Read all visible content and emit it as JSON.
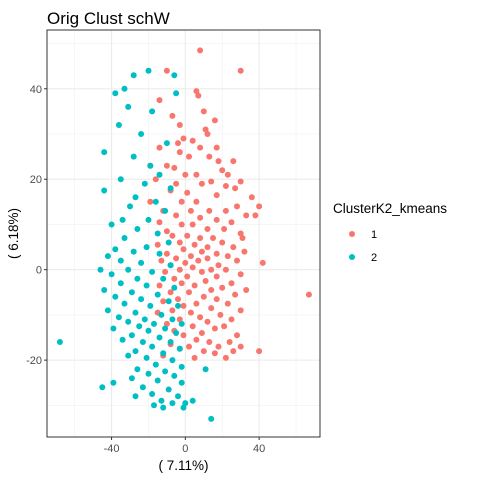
{
  "chart_data": {
    "type": "scatter",
    "title": "Orig Clust schW",
    "xlabel": "( 7.11%)",
    "ylabel": "( 6.18%)",
    "xlim": [
      -75,
      73
    ],
    "ylim": [
      -37,
      53
    ],
    "x_ticks": [
      -40,
      0,
      40
    ],
    "y_ticks": [
      -20,
      0,
      20,
      40
    ],
    "x_tick_labels": [
      "-40",
      "0",
      "40"
    ],
    "y_tick_labels": [
      "-20",
      "0",
      "20",
      "40"
    ],
    "grid": true,
    "legend": {
      "title": "ClusterK2_kmeans",
      "position": "right"
    },
    "series": [
      {
        "name": "1",
        "color": "#F8766D",
        "points": [
          [
            8,
            48.5
          ],
          [
            30,
            44
          ],
          [
            -10,
            44
          ],
          [
            6,
            39.5
          ],
          [
            7,
            38.5
          ],
          [
            -14,
            37.5
          ],
          [
            10,
            35
          ],
          [
            -7,
            34
          ],
          [
            16,
            33
          ],
          [
            -3,
            32
          ],
          [
            11,
            31
          ],
          [
            12,
            30
          ],
          [
            -1,
            29
          ],
          [
            4,
            28.5
          ],
          [
            -4,
            28
          ],
          [
            8,
            27
          ],
          [
            17,
            27
          ],
          [
            -14,
            27
          ],
          [
            -3,
            26
          ],
          [
            2,
            25
          ],
          [
            13,
            25
          ],
          [
            18,
            24
          ],
          [
            26,
            24
          ],
          [
            -19,
            23
          ],
          [
            -10,
            23
          ],
          [
            -6,
            22.5
          ],
          [
            20,
            22
          ],
          [
            0,
            21
          ],
          [
            6,
            21
          ],
          [
            23,
            21
          ],
          [
            -16,
            20
          ],
          [
            14,
            19.5
          ],
          [
            30,
            19.5
          ],
          [
            -5,
            19
          ],
          [
            9,
            19
          ],
          [
            22,
            18.5
          ],
          [
            27,
            18
          ],
          [
            -8,
            17.5
          ],
          [
            1,
            17
          ],
          [
            17,
            16.5
          ],
          [
            36,
            16
          ],
          [
            -19,
            15
          ],
          [
            -2,
            15
          ],
          [
            6,
            15
          ],
          [
            28,
            14
          ],
          [
            40,
            14
          ],
          [
            -12,
            13
          ],
          [
            3,
            13
          ],
          [
            13,
            13
          ],
          [
            22,
            13
          ],
          [
            33,
            12
          ],
          [
            -5,
            12
          ],
          [
            38,
            12
          ],
          [
            8,
            11.5
          ],
          [
            17,
            11
          ],
          [
            -14,
            10.5
          ],
          [
            -2,
            10
          ],
          [
            25,
            10.5
          ],
          [
            4,
            10
          ],
          [
            12,
            9
          ],
          [
            21,
            9
          ],
          [
            -10,
            8.5
          ],
          [
            30,
            8
          ],
          [
            -7,
            7.5
          ],
          [
            1,
            7.5
          ],
          [
            8,
            7
          ],
          [
            15,
            7
          ],
          [
            31,
            7
          ],
          [
            -3,
            6
          ],
          [
            20,
            6
          ],
          [
            -15,
            5.5
          ],
          [
            5,
            5.5
          ],
          [
            12,
            5
          ],
          [
            26,
            5
          ],
          [
            -1,
            4.5
          ],
          [
            32,
            4
          ],
          [
            9,
            4
          ],
          [
            -10,
            3.5
          ],
          [
            17,
            3.5
          ],
          [
            3,
            3
          ],
          [
            23,
            3
          ],
          [
            -5,
            2.5
          ],
          [
            12,
            2.5
          ],
          [
            -13,
            2
          ],
          [
            7,
            2
          ],
          [
            28,
            2
          ],
          [
            0,
            1.5
          ],
          [
            18,
            1
          ],
          [
            -8,
            1
          ],
          [
            4,
            0.5
          ],
          [
            42,
            1.5
          ],
          [
            14,
            0
          ],
          [
            -3,
            0
          ],
          [
            22,
            0
          ],
          [
            9,
            -0.5
          ],
          [
            -11,
            -0.5
          ],
          [
            30,
            -1
          ],
          [
            1,
            -1.5
          ],
          [
            17,
            -1.5
          ],
          [
            -6,
            -2
          ],
          [
            11,
            -2.5
          ],
          [
            25,
            -3
          ],
          [
            -2,
            -3
          ],
          [
            5,
            -3.5
          ],
          [
            -14,
            -3.5
          ],
          [
            20,
            -4
          ],
          [
            33,
            -4.5
          ],
          [
            14,
            -4.5
          ],
          [
            -8,
            -5
          ],
          [
            2,
            -5
          ],
          [
            27,
            -5.5
          ],
          [
            10,
            -6
          ],
          [
            -4,
            -6.5
          ],
          [
            17,
            -6.5
          ],
          [
            67,
            -5.5
          ],
          [
            -12,
            -7
          ],
          [
            6,
            -7.5
          ],
          [
            23,
            -7.5
          ],
          [
            -1,
            -8
          ],
          [
            14,
            -8.5
          ],
          [
            30,
            -9
          ],
          [
            -7,
            -9
          ],
          [
            3,
            -9.5
          ],
          [
            -15,
            -9.5
          ],
          [
            19,
            -10
          ],
          [
            8,
            -10.5
          ],
          [
            25,
            -11
          ],
          [
            -3,
            -11
          ],
          [
            12,
            -11.5
          ],
          [
            -10,
            -12
          ],
          [
            4,
            -12.5
          ],
          [
            21,
            -12.5
          ],
          [
            16,
            -13
          ],
          [
            -6,
            -13.5
          ],
          [
            9,
            -14
          ],
          [
            28,
            -14.5
          ],
          [
            -1,
            -14.5
          ],
          [
            6,
            -15.5
          ],
          [
            13,
            -16
          ],
          [
            24,
            -16
          ],
          [
            -8,
            -16.5
          ],
          [
            2,
            -17
          ],
          [
            18,
            -17
          ],
          [
            30,
            -17
          ],
          [
            -3,
            -17.5
          ],
          [
            10,
            -18
          ],
          [
            40,
            -18
          ],
          [
            26,
            -18
          ],
          [
            16,
            -18.5
          ],
          [
            -12,
            -19
          ],
          [
            5,
            -19.5
          ],
          [
            22,
            -19.5
          ]
        ]
      },
      {
        "name": "2",
        "color": "#00BFC4",
        "points": [
          [
            -28,
            43
          ],
          [
            -20,
            44
          ],
          [
            -6,
            43
          ],
          [
            -38,
            39
          ],
          [
            -33,
            40
          ],
          [
            -5,
            39
          ],
          [
            -31,
            36
          ],
          [
            -18,
            35
          ],
          [
            -36,
            32
          ],
          [
            -24,
            30
          ],
          [
            -10,
            28
          ],
          [
            -44,
            26
          ],
          [
            -28,
            25
          ],
          [
            -19,
            23
          ],
          [
            -14,
            21
          ],
          [
            -35,
            20
          ],
          [
            -22,
            19
          ],
          [
            -8,
            18
          ],
          [
            -44,
            17.5
          ],
          [
            -27,
            16
          ],
          [
            -16,
            15
          ],
          [
            -30,
            14
          ],
          [
            -11,
            13
          ],
          [
            -34,
            11
          ],
          [
            -20,
            11
          ],
          [
            -40,
            10
          ],
          [
            -26,
            9
          ],
          [
            -15,
            8
          ],
          [
            -33,
            7
          ],
          [
            -9,
            6
          ],
          [
            -21,
            5
          ],
          [
            -38,
            4.5
          ],
          [
            -28,
            4
          ],
          [
            -14,
            3.5
          ],
          [
            -42,
            3
          ],
          [
            -35,
            2
          ],
          [
            -24,
            1.5
          ],
          [
            -8,
            1
          ],
          [
            -46,
            0
          ],
          [
            -31,
            0
          ],
          [
            -18,
            -0.5
          ],
          [
            -40,
            -1
          ],
          [
            -26,
            -2
          ],
          [
            -12,
            -2
          ],
          [
            -35,
            -3
          ],
          [
            -21,
            -3.5
          ],
          [
            -6,
            -4
          ],
          [
            -44,
            -4.5
          ],
          [
            -29,
            -5
          ],
          [
            -15,
            -5.5
          ],
          [
            -38,
            -6
          ],
          [
            -24,
            -6.5
          ],
          [
            -9,
            -7
          ],
          [
            -33,
            -7.5
          ],
          [
            -19,
            -8
          ],
          [
            -4,
            -8
          ],
          [
            -42,
            -9
          ],
          [
            -27,
            -9.5
          ],
          [
            -13,
            -10
          ],
          [
            -36,
            -10.5
          ],
          [
            -22,
            -11
          ],
          [
            -7,
            -11
          ],
          [
            -31,
            -11.5
          ],
          [
            -17,
            -12
          ],
          [
            -2,
            -12
          ],
          [
            -25,
            -12.5
          ],
          [
            -11,
            -13
          ],
          [
            -39,
            -13
          ],
          [
            -20,
            -13.5
          ],
          [
            -5,
            -14
          ],
          [
            -29,
            -14.5
          ],
          [
            -14,
            -15
          ],
          [
            -34,
            -15.5
          ],
          [
            -23,
            -16
          ],
          [
            -8,
            -16
          ],
          [
            -68,
            -16
          ],
          [
            -18,
            -17
          ],
          [
            -3,
            -17.5
          ],
          [
            -27,
            -18
          ],
          [
            -12,
            -18.5
          ],
          [
            -31,
            -19
          ],
          [
            -21,
            -19.5
          ],
          [
            -7,
            -20
          ],
          [
            -16,
            -21
          ],
          [
            -2,
            -21.5
          ],
          [
            -26,
            -22
          ],
          [
            -11,
            -22.5
          ],
          [
            11,
            -22
          ],
          [
            -20,
            -23
          ],
          [
            -6,
            -23.5
          ],
          [
            -29,
            -24
          ],
          [
            -15,
            -24.5
          ],
          [
            -2,
            -25
          ],
          [
            -39,
            -25
          ],
          [
            -45,
            -26
          ],
          [
            -23,
            -26
          ],
          [
            -9,
            -26.5
          ],
          [
            -18,
            -27.5
          ],
          [
            -4,
            -28
          ],
          [
            -27,
            -28
          ],
          [
            -13,
            -29
          ],
          [
            4,
            -29
          ],
          [
            -7,
            -29.5
          ],
          [
            0,
            -29.5
          ],
          [
            -17,
            -30
          ],
          [
            -1,
            -30.5
          ],
          [
            -12,
            -30.5
          ],
          [
            14,
            -33
          ]
        ]
      }
    ]
  }
}
